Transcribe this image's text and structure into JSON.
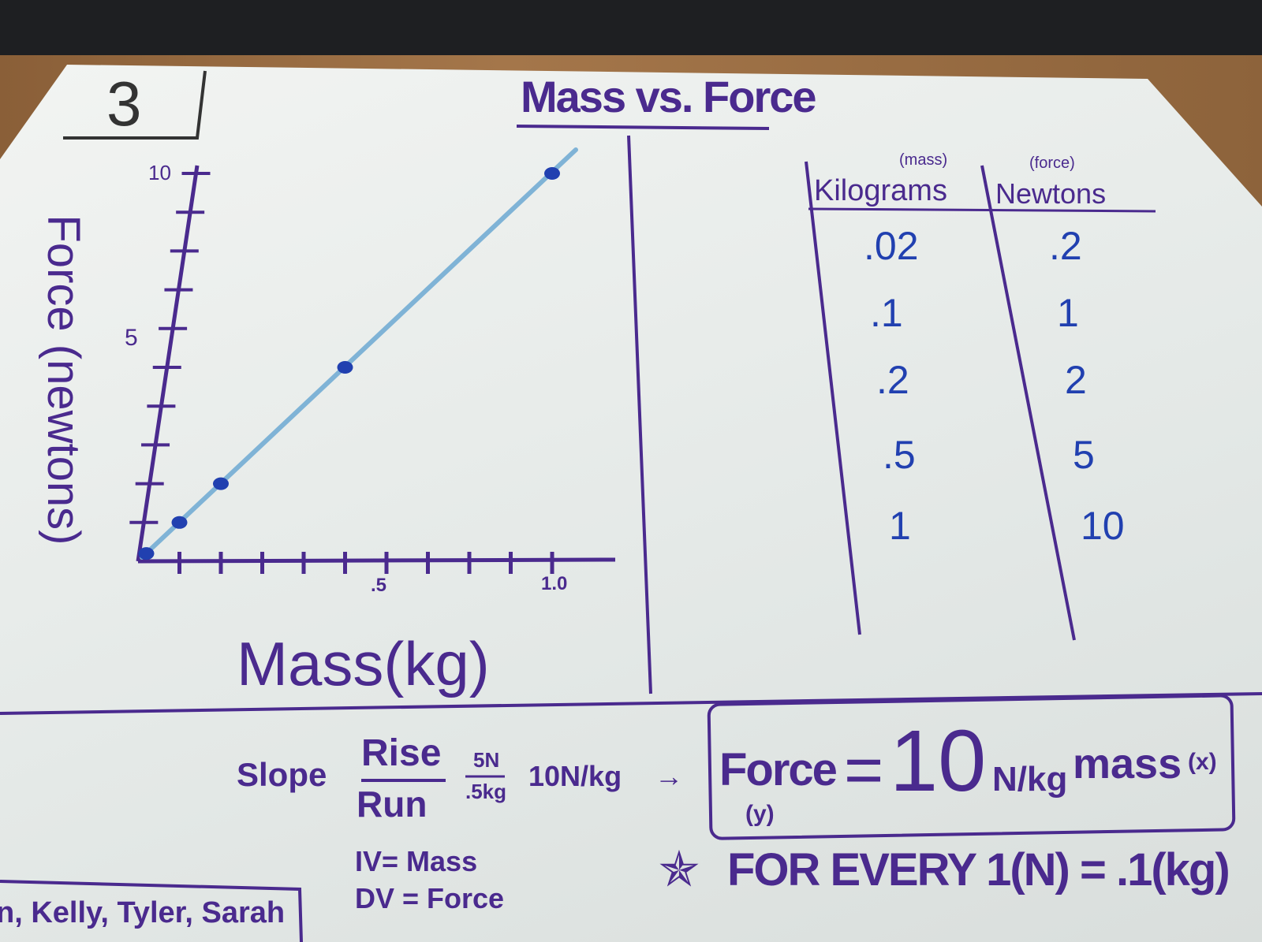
{
  "board_number": "3",
  "title": "Mass vs. Force",
  "table": {
    "headers": [
      {
        "sub": "(mass)",
        "label": "Kilograms"
      },
      {
        "sub": "(force)",
        "label": "Newtons"
      }
    ],
    "rows": [
      [
        ".02",
        ".2"
      ],
      [
        ".1",
        "1"
      ],
      [
        ".2",
        "2"
      ],
      [
        ".5",
        "5"
      ],
      [
        "1",
        "10"
      ]
    ]
  },
  "chart_data": {
    "type": "line",
    "title": "Mass vs. Force",
    "xlabel": "Mass(kg)",
    "ylabel": "Force (newtons)",
    "xlim": [
      0,
      1.0
    ],
    "ylim": [
      0,
      10
    ],
    "x_tick_labels": [
      ".5",
      "1.0"
    ],
    "y_tick_labels": [
      "5",
      "10"
    ],
    "x": [
      0.02,
      0.1,
      0.2,
      0.5,
      1.0
    ],
    "y": [
      0.2,
      1,
      2,
      5,
      10
    ],
    "line_color": "#7fb3d6",
    "point_color": "#2140b0",
    "axis_color": "#4a2a8e",
    "grid": false
  },
  "slope": {
    "label": "Slope",
    "rise": "Rise",
    "run": "Run",
    "num": "5N",
    "den": ".5kg",
    "result": "10N/kg"
  },
  "equation": {
    "lhs": "Force",
    "lhs_var": "(y)",
    "coef": "10",
    "unit": "N/kg",
    "rhs": "mass",
    "rhs_var": "(x)"
  },
  "variables": {
    "iv": "IV= Mass",
    "dv": "DV = Force"
  },
  "note": "FOR EVERY 1(N) = .1(kg)",
  "names": "n, Kelly, Tyler, Sarah"
}
